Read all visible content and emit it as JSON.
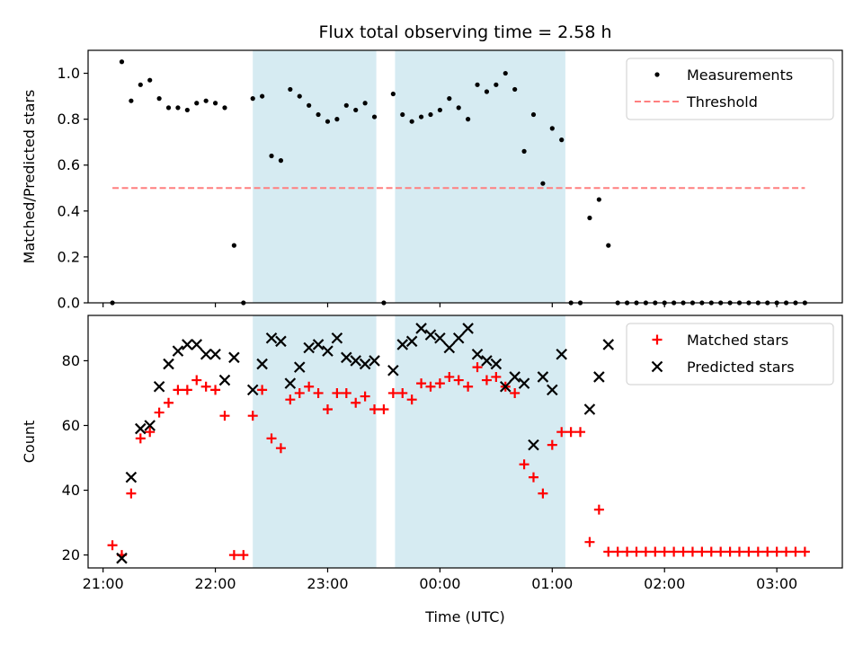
{
  "chart_data": [
    {
      "type": "scatter",
      "title": "Flux total observing time = 2.58 h",
      "xlabel": "",
      "ylabel": "Matched/Predicted stars",
      "ylim": [
        0,
        1.1
      ],
      "yticks": [
        "0.0",
        "0.2",
        "0.4",
        "0.6",
        "0.8",
        "1.0"
      ],
      "legend": {
        "placement": "top-right",
        "entries": [
          "Measurements",
          "Threshold"
        ]
      },
      "shaded_intervals": [
        [
          "22:20",
          "23:26"
        ],
        [
          "23:36",
          "01:07"
        ]
      ],
      "threshold": {
        "name": "Threshold",
        "value": 0.5,
        "x_range": [
          "21:05",
          "03:15"
        ],
        "color": "#ff7f7f"
      },
      "series": [
        {
          "name": "Measurements",
          "color": "#000000",
          "x": [
            "21:05",
            "21:10",
            "21:15",
            "21:20",
            "21:25",
            "21:30",
            "21:35",
            "21:40",
            "21:45",
            "21:50",
            "21:55",
            "22:00",
            "22:05",
            "22:10",
            "22:15",
            "22:20",
            "22:25",
            "22:30",
            "22:35",
            "22:40",
            "22:45",
            "22:50",
            "22:55",
            "23:00",
            "23:05",
            "23:10",
            "23:15",
            "23:20",
            "23:25",
            "23:30",
            "23:35",
            "23:40",
            "23:45",
            "23:50",
            "23:55",
            "00:00",
            "00:05",
            "00:10",
            "00:15",
            "00:20",
            "00:25",
            "00:30",
            "00:35",
            "00:40",
            "00:45",
            "00:50",
            "00:55",
            "01:00",
            "01:05",
            "01:10",
            "01:15",
            "01:20",
            "01:25",
            "01:30",
            "01:35",
            "01:40",
            "01:45",
            "01:50",
            "01:55",
            "02:00",
            "02:05",
            "02:10",
            "02:15",
            "02:20",
            "02:25",
            "02:30",
            "02:35",
            "02:40",
            "02:45",
            "02:50",
            "02:55",
            "03:00",
            "03:05",
            "03:10",
            "03:15"
          ],
          "y": [
            0.0,
            1.05,
            0.88,
            0.95,
            0.97,
            0.89,
            0.85,
            0.85,
            0.84,
            0.87,
            0.88,
            0.87,
            0.85,
            0.25,
            0.0,
            0.89,
            0.9,
            0.64,
            0.62,
            0.93,
            0.9,
            0.86,
            0.82,
            0.79,
            0.8,
            0.86,
            0.84,
            0.87,
            0.81,
            0.0,
            0.91,
            0.82,
            0.79,
            0.81,
            0.82,
            0.84,
            0.89,
            0.85,
            0.8,
            0.95,
            0.92,
            0.95,
            1.0,
            0.93,
            0.66,
            0.82,
            0.52,
            0.76,
            0.71,
            0.0,
            0.0,
            0.37,
            0.45,
            0.25,
            0.0,
            0.0,
            0.0,
            0.0,
            0.0,
            0.0,
            0.0,
            0.0,
            0.0,
            0.0,
            0.0,
            0.0,
            0.0,
            0.0,
            0.0,
            0.0,
            0.0,
            0.0,
            0.0,
            0.0,
            0.0
          ]
        }
      ]
    },
    {
      "type": "scatter",
      "title": "",
      "xlabel": "Time (UTC)",
      "ylabel": "Count",
      "ylim": [
        16,
        94
      ],
      "yticks": [
        "20",
        "40",
        "60",
        "80"
      ],
      "xticks": [
        "21:00",
        "22:00",
        "23:00",
        "00:00",
        "01:00",
        "02:00",
        "03:00"
      ],
      "legend": {
        "placement": "top-right",
        "entries": [
          "Matched stars",
          "Predicted stars"
        ]
      },
      "shaded_intervals": [
        [
          "22:20",
          "23:26"
        ],
        [
          "23:36",
          "01:07"
        ]
      ],
      "series": [
        {
          "name": "Matched stars",
          "marker": "plus",
          "color": "#ff0000",
          "x": [
            "21:05",
            "21:10",
            "21:15",
            "21:20",
            "21:25",
            "21:30",
            "21:35",
            "21:40",
            "21:45",
            "21:50",
            "21:55",
            "22:00",
            "22:05",
            "22:10",
            "22:15",
            "22:20",
            "22:25",
            "22:30",
            "22:35",
            "22:40",
            "22:45",
            "22:50",
            "22:55",
            "23:00",
            "23:05",
            "23:10",
            "23:15",
            "23:20",
            "23:25",
            "23:30",
            "23:35",
            "23:40",
            "23:45",
            "23:50",
            "23:55",
            "00:00",
            "00:05",
            "00:10",
            "00:15",
            "00:20",
            "00:25",
            "00:30",
            "00:35",
            "00:40",
            "00:45",
            "00:50",
            "00:55",
            "01:00",
            "01:05",
            "01:10",
            "01:15",
            "01:20",
            "01:25",
            "01:30",
            "01:35",
            "01:40",
            "01:45",
            "01:50",
            "01:55",
            "02:00",
            "02:05",
            "02:10",
            "02:15",
            "02:20",
            "02:25",
            "02:30",
            "02:35",
            "02:40",
            "02:45",
            "02:50",
            "02:55",
            "03:00",
            "03:05",
            "03:10",
            "03:15"
          ],
          "y": [
            23,
            20,
            39,
            56,
            58,
            64,
            67,
            71,
            71,
            74,
            72,
            71,
            63,
            20,
            20,
            63,
            71,
            56,
            53,
            68,
            70,
            72,
            70,
            65,
            70,
            70,
            67,
            69,
            65,
            65,
            70,
            70,
            68,
            73,
            72,
            73,
            75,
            74,
            72,
            78,
            74,
            75,
            72,
            70,
            48,
            44,
            39,
            54,
            58,
            58,
            58,
            24,
            34,
            21,
            21,
            21,
            21,
            21,
            21,
            21,
            21,
            21,
            21,
            21,
            21,
            21,
            21,
            21,
            21,
            21,
            21,
            21,
            21,
            21,
            21
          ]
        },
        {
          "name": "Predicted stars",
          "marker": "x",
          "color": "#000000",
          "x": [
            "21:10",
            "21:15",
            "21:20",
            "21:25",
            "21:30",
            "21:35",
            "21:40",
            "21:45",
            "21:50",
            "21:55",
            "22:00",
            "22:05",
            "22:10",
            "22:20",
            "22:25",
            "22:30",
            "22:35",
            "22:40",
            "22:45",
            "22:50",
            "22:55",
            "23:00",
            "23:05",
            "23:10",
            "23:15",
            "23:20",
            "23:25",
            "23:35",
            "23:40",
            "23:45",
            "23:50",
            "23:55",
            "00:00",
            "00:05",
            "00:10",
            "00:15",
            "00:20",
            "00:25",
            "00:30",
            "00:35",
            "00:40",
            "00:45",
            "00:50",
            "00:55",
            "01:00",
            "01:05",
            "01:20",
            "01:25",
            "01:30"
          ],
          "y": [
            19,
            44,
            59,
            60,
            72,
            79,
            83,
            85,
            85,
            82,
            82,
            74,
            81,
            71,
            79,
            87,
            86,
            73,
            78,
            84,
            85,
            83,
            87,
            81,
            80,
            79,
            80,
            77,
            85,
            86,
            90,
            88,
            87,
            84,
            87,
            90,
            82,
            80,
            79,
            72,
            75,
            73,
            54,
            75,
            71,
            82,
            65,
            75,
            85
          ]
        }
      ]
    }
  ]
}
